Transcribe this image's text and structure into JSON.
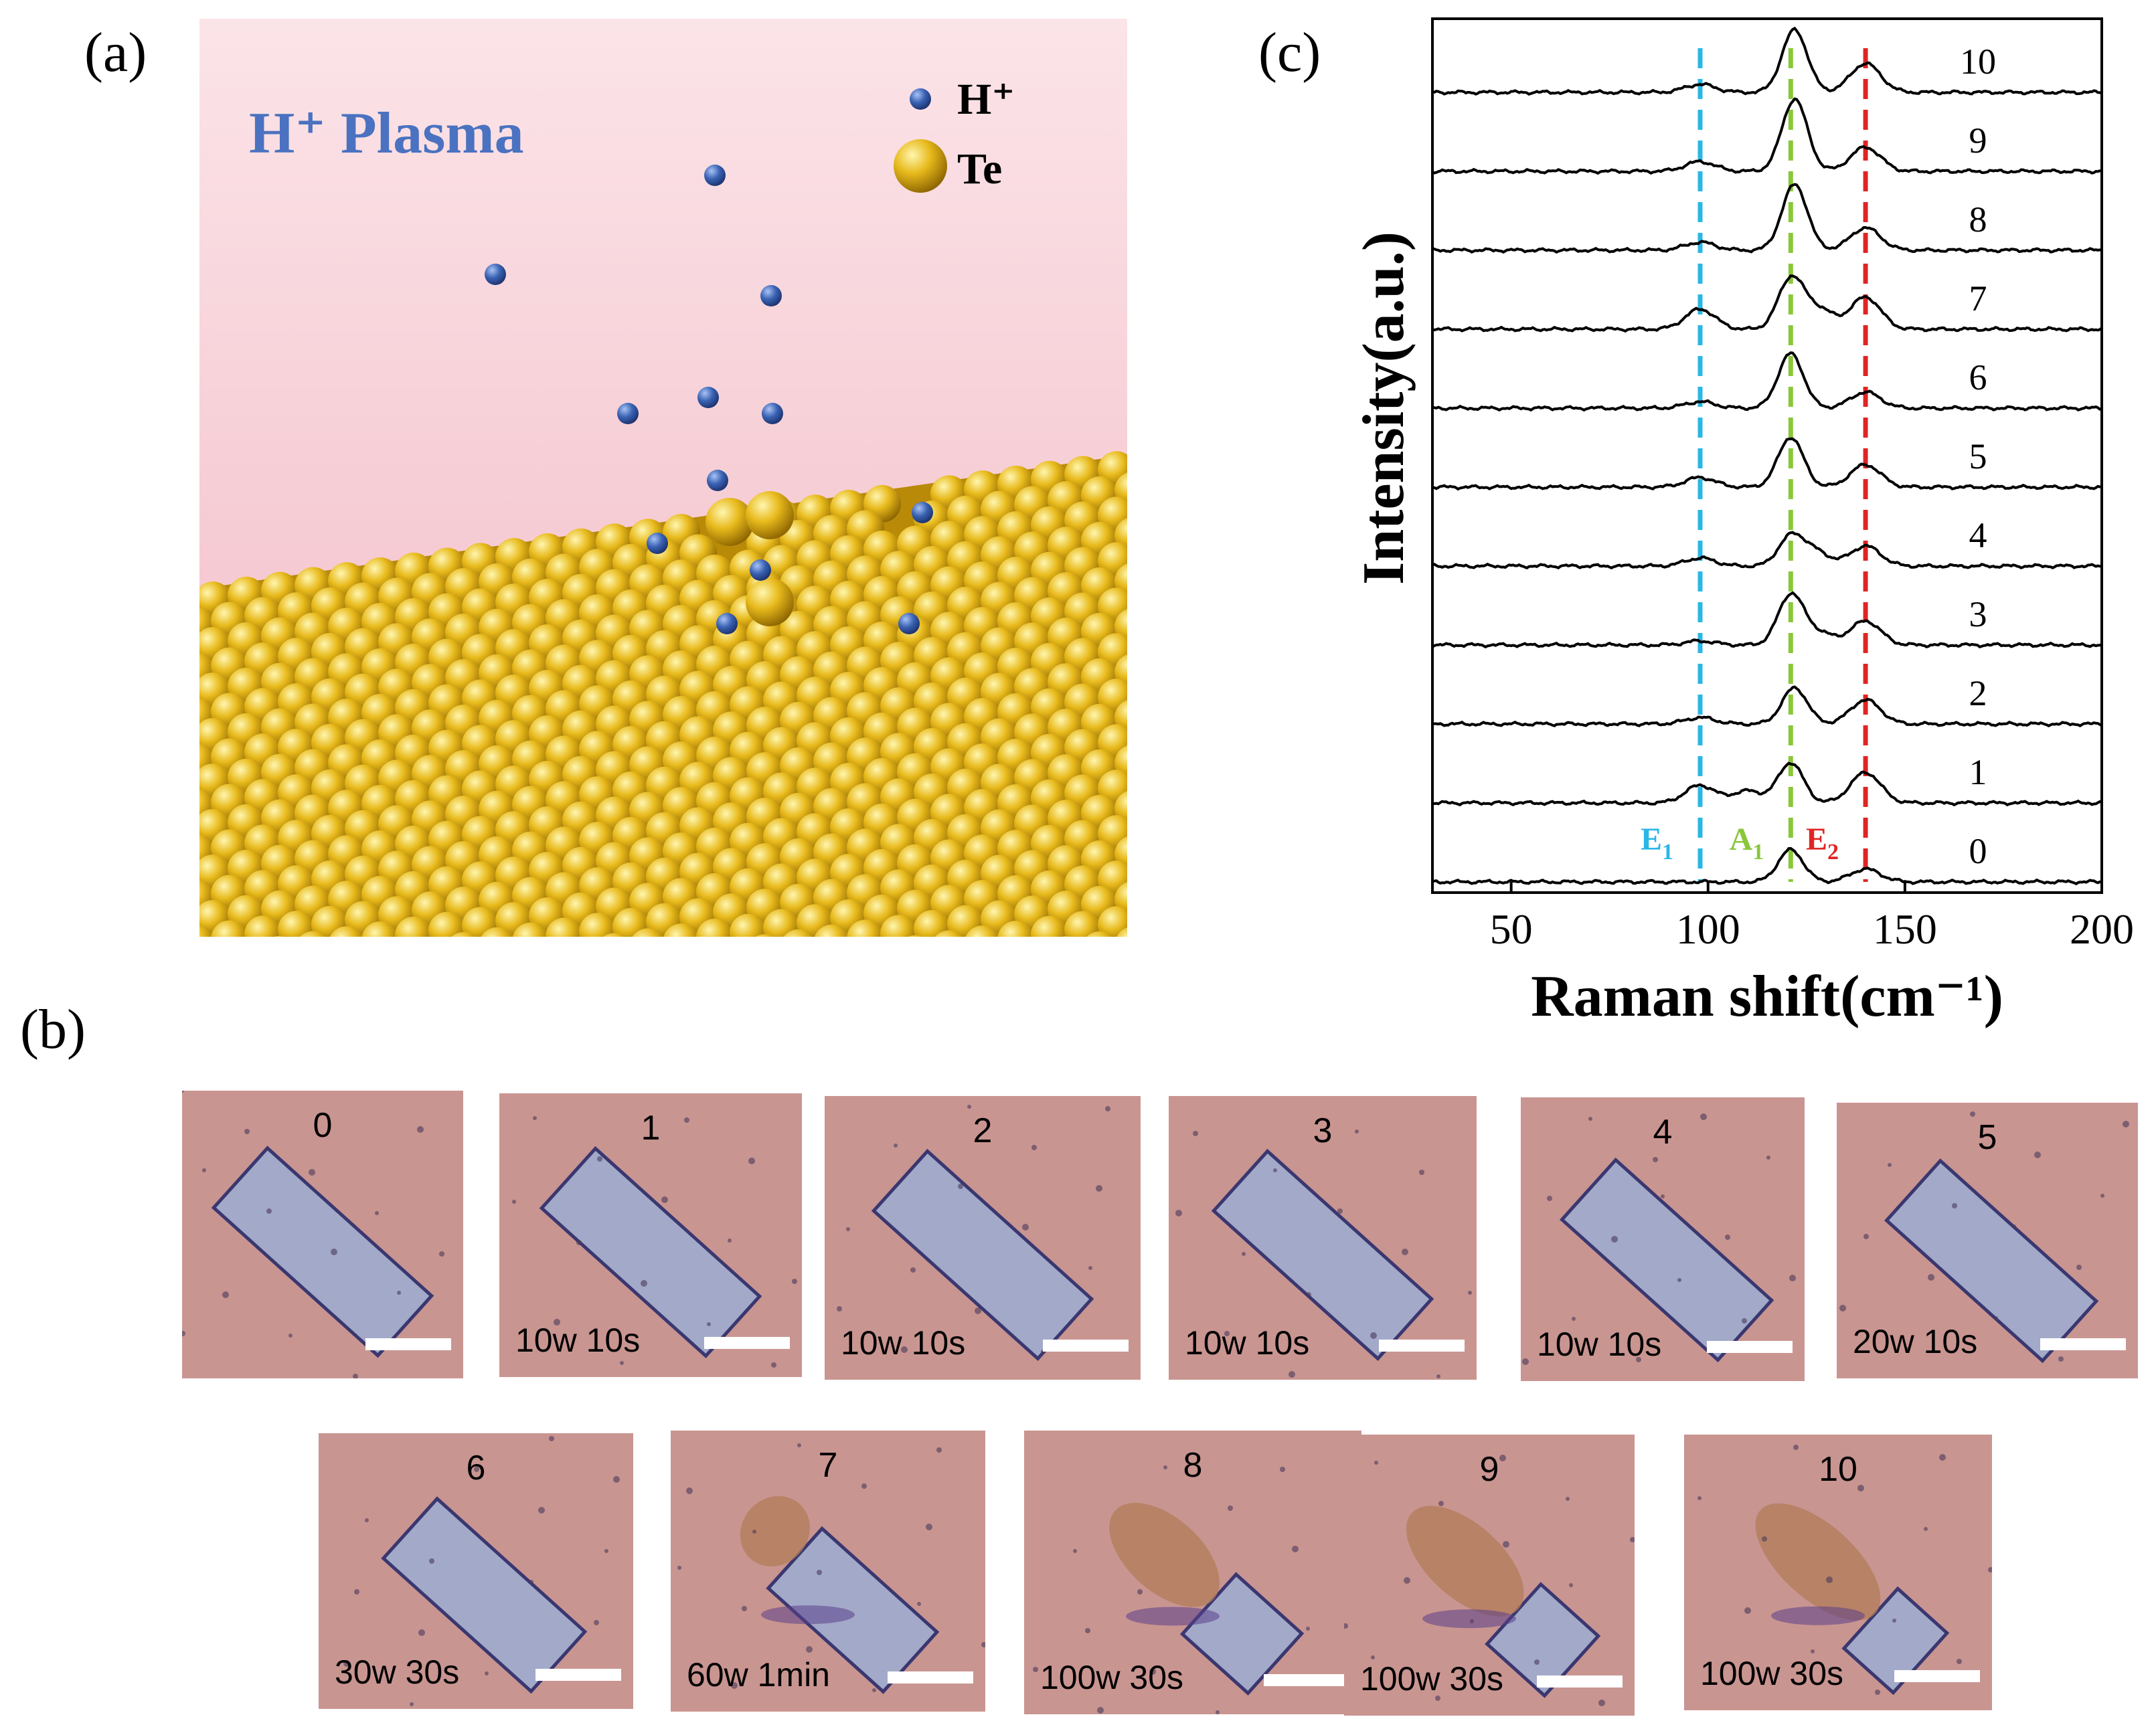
{
  "panel_labels": {
    "a": "(a)",
    "b": "(b)",
    "c": "(c)"
  },
  "schematic": {
    "title": "H⁺ Plasma",
    "legend_h": "H⁺",
    "legend_te": "Te",
    "colors": {
      "plasma_top": "#fbe4e8",
      "plasma_bottom": "#f2b9c4",
      "te": "#e2b116",
      "h": "#3a62b3",
      "title": "#4a72c0"
    }
  },
  "micrographs": {
    "colors": {
      "background": "#c99591",
      "flake": "#a3a9c8",
      "flake_edge": "#3a3770"
    },
    "items": [
      {
        "num": "0",
        "cond": "",
        "row": 0,
        "etch": 0
      },
      {
        "num": "1",
        "cond": "10w 10s",
        "row": 0,
        "etch": 0
      },
      {
        "num": "2",
        "cond": "10w 10s",
        "row": 0,
        "etch": 0
      },
      {
        "num": "3",
        "cond": "10w 10s",
        "row": 0,
        "etch": 0
      },
      {
        "num": "4",
        "cond": "10w 10s",
        "row": 0,
        "etch": 0.05
      },
      {
        "num": "5",
        "cond": "20w 10s",
        "row": 0,
        "etch": 0.05
      },
      {
        "num": "6",
        "cond": "30w 30s",
        "row": 1,
        "etch": 0.1
      },
      {
        "num": "7",
        "cond": "60w 1min",
        "row": 1,
        "etch": 0.3
      },
      {
        "num": "8",
        "cond": "100w 30s",
        "row": 1,
        "etch": 0.6
      },
      {
        "num": "9",
        "cond": "100w 30s",
        "row": 1,
        "etch": 0.65
      },
      {
        "num": "10",
        "cond": "100w 30s",
        "row": 1,
        "etch": 0.7
      }
    ]
  },
  "chart_data": {
    "type": "line",
    "xlabel": "Raman shift(cm⁻¹)",
    "ylabel": "Intensity(a.u.)",
    "xlim": [
      30,
      200
    ],
    "xticks": [
      50,
      100,
      150,
      200
    ],
    "grid": false,
    "series": [
      {
        "name": "0",
        "peaks": [
          [
            121,
            0.4
          ],
          [
            140,
            0.16
          ],
          [
            98,
            0.0
          ]
        ]
      },
      {
        "name": "1",
        "peaks": [
          [
            121,
            0.5
          ],
          [
            140,
            0.38
          ],
          [
            98,
            0.22
          ],
          [
            110,
            0.15
          ]
        ]
      },
      {
        "name": "2",
        "peaks": [
          [
            122,
            0.45
          ],
          [
            140,
            0.3
          ],
          [
            98,
            0.08
          ]
        ]
      },
      {
        "name": "3",
        "peaks": [
          [
            121,
            0.62
          ],
          [
            140,
            0.3
          ],
          [
            98,
            0.05
          ],
          [
            128,
            0.15
          ]
        ]
      },
      {
        "name": "4",
        "peaks": [
          [
            121,
            0.35
          ],
          [
            140,
            0.25
          ],
          [
            98,
            0.1
          ],
          [
            127,
            0.18
          ]
        ]
      },
      {
        "name": "5",
        "peaks": [
          [
            121,
            0.62
          ],
          [
            140,
            0.28
          ],
          [
            98,
            0.12
          ]
        ]
      },
      {
        "name": "6",
        "peaks": [
          [
            121,
            0.68
          ],
          [
            140,
            0.2
          ],
          [
            98,
            0.08
          ]
        ]
      },
      {
        "name": "7",
        "peaks": [
          [
            121,
            0.62
          ],
          [
            140,
            0.4
          ],
          [
            98,
            0.25
          ],
          [
            128,
            0.25
          ]
        ]
      },
      {
        "name": "8",
        "peaks": [
          [
            122,
            0.82
          ],
          [
            140,
            0.28
          ],
          [
            98,
            0.1
          ]
        ]
      },
      {
        "name": "9",
        "peaks": [
          [
            122,
            0.9
          ],
          [
            140,
            0.3
          ],
          [
            98,
            0.12
          ]
        ]
      },
      {
        "name": "10",
        "peaks": [
          [
            122,
            0.78
          ],
          [
            140,
            0.36
          ],
          [
            98,
            0.1
          ]
        ]
      }
    ],
    "reference_lines": [
      {
        "label": "E",
        "sub": "1",
        "x": 98,
        "color": "#2ab7e6"
      },
      {
        "label": "A",
        "sub": "1",
        "x": 121,
        "color": "#8ac73b"
      },
      {
        "label": "E",
        "sub": "2",
        "x": 140,
        "color": "#e02424"
      }
    ]
  }
}
